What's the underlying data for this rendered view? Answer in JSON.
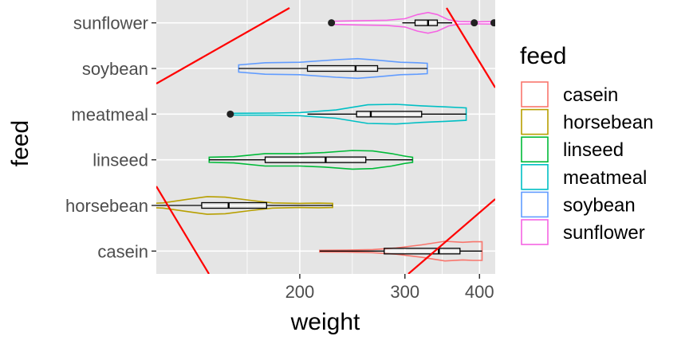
{
  "chart_data": {
    "type": "violin",
    "xlabel": "weight",
    "ylabel": "feed",
    "x_scale": "log",
    "xlim": [
      115,
      425
    ],
    "x_ticks": [
      200,
      300,
      400
    ],
    "x_tick_labels": [
      "200",
      "300",
      "400"
    ],
    "categories": [
      "casein",
      "horsebean",
      "linseed",
      "meatmeal",
      "soybean",
      "sunflower"
    ],
    "legend": {
      "title": "feed",
      "position": "right"
    },
    "grid": true,
    "panel_background": "#e5e5e5",
    "series": [
      {
        "name": "casein",
        "color": "#F8766D",
        "violin": {
          "min": 216,
          "max": 404,
          "profile": [
            [
              216,
              0.08
            ],
            [
              240,
              0.1
            ],
            [
              265,
              0.15
            ],
            [
              290,
              0.3
            ],
            [
              320,
              0.6
            ],
            [
              350,
              0.95
            ],
            [
              375,
              0.85
            ],
            [
              390,
              0.9
            ],
            [
              404,
              0.9
            ]
          ]
        },
        "box": {
          "q1": 277,
          "median": 342,
          "q3": 371
        },
        "whiskers": [
          216,
          404
        ],
        "outliers": []
      },
      {
        "name": "horsebean",
        "color": "#B79F00",
        "violin": {
          "min": 108,
          "max": 227,
          "profile": [
            [
              108,
              0.15
            ],
            [
              118,
              0.25
            ],
            [
              130,
              0.6
            ],
            [
              140,
              0.85
            ],
            [
              150,
              0.8
            ],
            [
              165,
              0.5
            ],
            [
              180,
              0.25
            ],
            [
              200,
              0.2
            ],
            [
              215,
              0.22
            ],
            [
              227,
              0.2
            ]
          ]
        },
        "box": {
          "q1": 137,
          "median": 152,
          "q3": 176
        },
        "whiskers": [
          108,
          227
        ],
        "outliers": []
      },
      {
        "name": "linseed",
        "color": "#00BA38",
        "violin": {
          "min": 141,
          "max": 309,
          "profile": [
            [
              141,
              0.25
            ],
            [
              155,
              0.3
            ],
            [
              175,
              0.6
            ],
            [
              200,
              0.6
            ],
            [
              220,
              0.7
            ],
            [
              245,
              0.9
            ],
            [
              265,
              0.85
            ],
            [
              285,
              0.6
            ],
            [
              300,
              0.35
            ],
            [
              309,
              0.25
            ]
          ]
        },
        "box": {
          "q1": 175,
          "median": 221,
          "q3": 258
        },
        "whiskers": [
          141,
          309
        ],
        "outliers": []
      },
      {
        "name": "meatmeal",
        "color": "#00BFC4",
        "violin": {
          "min": 153,
          "max": 380,
          "profile": [
            [
              153,
              0.08
            ],
            [
              180,
              0.1
            ],
            [
              200,
              0.15
            ],
            [
              230,
              0.4
            ],
            [
              260,
              0.9
            ],
            [
              290,
              0.95
            ],
            [
              320,
              0.8
            ],
            [
              350,
              0.7
            ],
            [
              380,
              0.6
            ]
          ]
        },
        "box": {
          "q1": 249,
          "median": 263,
          "q3": 320
        },
        "whiskers": [
          206,
          380
        ],
        "outliers": [
          153
        ]
      },
      {
        "name": "soybean",
        "color": "#619CFF",
        "violin": {
          "min": 158,
          "max": 327,
          "profile": [
            [
              158,
              0.35
            ],
            [
              175,
              0.55
            ],
            [
              200,
              0.6
            ],
            [
              230,
              0.85
            ],
            [
              250,
              0.95
            ],
            [
              270,
              0.8
            ],
            [
              295,
              0.6
            ],
            [
              315,
              0.55
            ],
            [
              327,
              0.5
            ]
          ]
        },
        "box": {
          "q1": 206,
          "median": 248,
          "q3": 270
        },
        "whiskers": [
          158,
          327
        ],
        "outliers": []
      },
      {
        "name": "sunflower",
        "color": "#F564E3",
        "violin": {
          "min": 226,
          "max": 423,
          "profile": [
            [
              226,
              0.15
            ],
            [
              250,
              0.2
            ],
            [
              280,
              0.25
            ],
            [
              300,
              0.4
            ],
            [
              315,
              0.8
            ],
            [
              328,
              1.0
            ],
            [
              340,
              0.8
            ],
            [
              355,
              0.3
            ],
            [
              370,
              0.12
            ],
            [
              395,
              0.1
            ],
            [
              423,
              0.12
            ]
          ]
        },
        "box": {
          "q1": 312,
          "median": 328,
          "q3": 340
        },
        "whiskers": [
          297,
          360
        ],
        "outliers": [
          226,
          392,
          423
        ]
      }
    ]
  }
}
